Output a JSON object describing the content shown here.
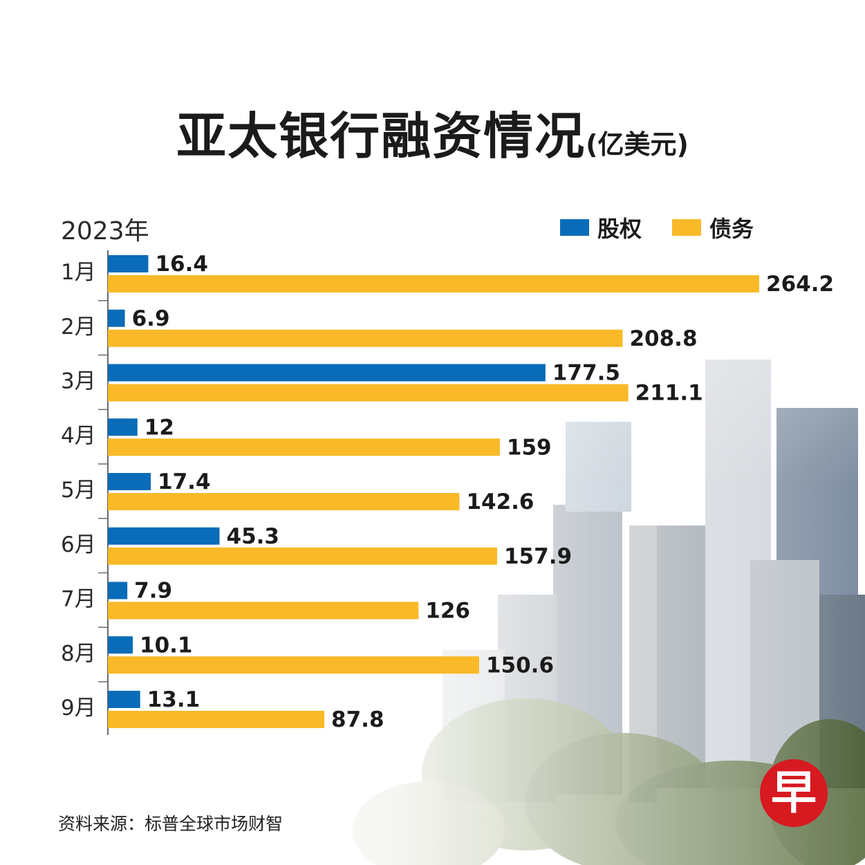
{
  "title": "亚太银行融资情况",
  "title_unit": "(亿美元)",
  "year_label": "2023年",
  "legend": [
    {
      "label": "股权",
      "color": "#0a6cb8"
    },
    {
      "label": "债务",
      "color": "#f9b928"
    }
  ],
  "source": "资料来源：标普全球市场财智",
  "logo_text": "早",
  "colors": {
    "equity": "#0a6cb8",
    "debt": "#f9b928",
    "axis": "#6b6b6b",
    "logo": "#d71920"
  },
  "chart_data": {
    "type": "bar",
    "orientation": "horizontal",
    "title": "亚太银行融资情况(亿美元)",
    "categories": [
      "1月",
      "2月",
      "3月",
      "4月",
      "5月",
      "6月",
      "7月",
      "8月",
      "9月"
    ],
    "series": [
      {
        "name": "股权",
        "values": [
          16.4,
          6.9,
          177.5,
          12,
          17.4,
          45.3,
          7.9,
          10.1,
          13.1
        ],
        "labels": [
          "16.4",
          "6.9",
          "177.5",
          "12",
          "17.4",
          "45.3",
          "7.9",
          "10.1",
          "13.1"
        ]
      },
      {
        "name": "债务",
        "values": [
          264.2,
          208.8,
          211.1,
          159,
          142.6,
          157.9,
          126,
          150.6,
          87.8
        ],
        "labels": [
          "264.2",
          "208.8",
          "211.1",
          "159",
          "142.6",
          "157.9",
          "126",
          "150.6",
          "87.8"
        ]
      }
    ],
    "xlim": [
      0,
      264.2
    ],
    "legend_position": "top-right"
  }
}
